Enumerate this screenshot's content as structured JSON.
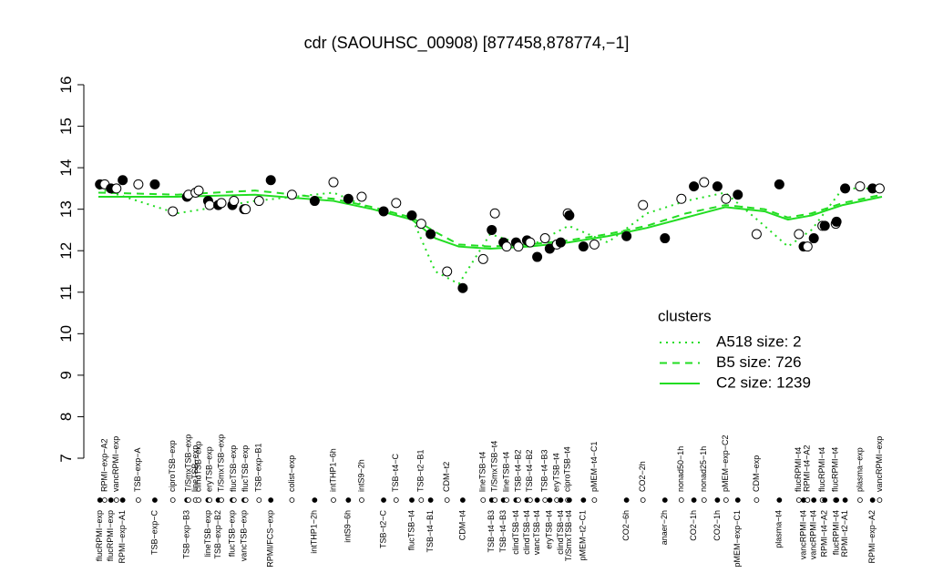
{
  "chart_data": {
    "type": "scatter",
    "title": "cdr (SAOUHSC_00908) [877458,878774,−1]",
    "ylim": [
      7,
      16
    ],
    "yticks": [
      7,
      8,
      9,
      10,
      11,
      12,
      13,
      14,
      15,
      16
    ],
    "xlim": [
      0,
      100
    ],
    "x": [
      0.2,
      0.8,
      1.6,
      2.3,
      3.1,
      5.1,
      7.2,
      9.5,
      11.3,
      11.5,
      12.4,
      12.8,
      14.0,
      14.2,
      15.3,
      15.7,
      17.1,
      17.3,
      18.6,
      18.8,
      20.5,
      22.0,
      24.7,
      27.6,
      30.0,
      31.9,
      33.6,
      36.4,
      38.0,
      40.0,
      41.2,
      42.4,
      44.5,
      46.5,
      49.1,
      50.2,
      50.6,
      51.7,
      52.1,
      53.3,
      53.6,
      54.7,
      55.1,
      56.0,
      57.0,
      57.6,
      58.5,
      59.0,
      59.9,
      60.1,
      61.9,
      63.3,
      67.4,
      69.5,
      72.3,
      74.4,
      76.0,
      77.3,
      79.0,
      80.1,
      81.6,
      84.0,
      86.9,
      89.4,
      90.0,
      90.5,
      91.3,
      92.4,
      92.7,
      94.1,
      94.2,
      95.3,
      97.2,
      98.8,
      99.7
    ],
    "values": [
      13.6,
      13.6,
      13.5,
      13.5,
      13.7,
      13.6,
      13.6,
      12.95,
      13.3,
      13.35,
      13.4,
      13.45,
      13.2,
      13.1,
      13.1,
      13.15,
      13.1,
      13.2,
      13.0,
      13.0,
      13.2,
      13.7,
      13.35,
      13.2,
      13.65,
      13.25,
      13.3,
      12.95,
      13.15,
      12.85,
      12.65,
      12.4,
      11.5,
      11.1,
      11.8,
      12.5,
      12.9,
      12.2,
      12.1,
      12.2,
      12.1,
      12.25,
      12.2,
      11.85,
      12.3,
      12.05,
      12.15,
      12.2,
      12.9,
      12.85,
      12.1,
      12.15,
      12.35,
      13.1,
      12.3,
      13.25,
      13.55,
      13.65,
      13.55,
      13.25,
      13.35,
      12.4,
      13.6,
      12.4,
      12.1,
      12.1,
      12.3,
      12.6,
      12.6,
      12.65,
      12.7,
      13.5,
      13.55,
      13.5,
      13.5
    ],
    "categories": [
      "flucRPMI−exp",
      "RPMI−exp−A2",
      "flucRPMI−exp",
      "vancRPMI−exp",
      "RPMI−exp−A1",
      "TSB−exp−A",
      "TSB−exp−C",
      "ciproTSB−exp",
      "TSB−exp−B3",
      "T/SmxTSB−exp",
      "lineTSB−exp",
      "clindTSB−exp",
      "lineTSB−exp",
      "eryTSB−exp",
      "TSB−exp−B2",
      "T/SmxTSB−exp",
      "flucTSB−exp",
      "flucTSB−exp",
      "vancTSB−exp",
      "flucTSB−exp",
      "TSB−exp−B1",
      "RPMI/FCS−exp",
      "colist−exp",
      "intTHP1−2h",
      "intTHP1−6h",
      "intS9−6h",
      "intS9−2h",
      "TSB−t2−C",
      "TSB−t4−C",
      "flucTSB−t4",
      "TSB−t2−B1",
      "TSB−t4−B1",
      "CDM−t2",
      "CDM−t4",
      "lineTSB−t4",
      "TSB−t4−B3",
      "T/SmxTSB−t4",
      "TSB−t4−B3",
      "lineTSB−t4",
      "clindTSB−t4",
      "TSB−t4−B2",
      "clindTSB−t4",
      "TSB−t4−B2",
      "vancTSB−t4",
      "TSB−t4−B3",
      "eryTSB−t4",
      "eryTSB−t4",
      "clindTSB−t4",
      "ciproTSB−t4",
      "T/SmxTSB−t4",
      "pMEM−t2−C1",
      "pMEM−t4−C1",
      "CO2−6h",
      "CO2−2h",
      "anaer−2h",
      "nonad50−1h",
      "CO2−1h",
      "nonad25−1h",
      "CO2−1h",
      "pMEM−exp−C2",
      "pMEM−exp−C1",
      "CDM−exp",
      "plasma−t4",
      "flucRPMI−t4",
      "vancRPMI−t4",
      "RPMI−t4−A2",
      "vancRPMI−t4",
      "flucRPMI−t4",
      "RPMI−t4−A2",
      "flucRPMI−t4",
      "flucRPMI−t4",
      "RPMI−t2−A1",
      "plasma−exp",
      "RPMI−exp−A2",
      "vancRPMI−exp"
    ],
    "fills": [
      "#000",
      "#fff",
      "#000",
      "#fff",
      "#000",
      "#fff",
      "#000",
      "#fff",
      "#000",
      "#fff",
      "#fff",
      "#fff",
      "#000",
      "#fff",
      "#000",
      "#fff",
      "#000",
      "#fff",
      "#000",
      "#fff",
      "#fff",
      "#000",
      "#fff",
      "#000",
      "#fff",
      "#000",
      "#fff",
      "#000",
      "#fff",
      "#000",
      "#fff",
      "#000",
      "#fff",
      "#000",
      "#fff",
      "#000",
      "#fff",
      "#000",
      "#fff",
      "#000",
      "#fff",
      "#000",
      "#fff",
      "#000",
      "#fff",
      "#000",
      "#fff",
      "#000",
      "#fff",
      "#000",
      "#000",
      "#fff",
      "#000",
      "#fff",
      "#000",
      "#fff",
      "#000",
      "#fff",
      "#000",
      "#fff",
      "#000",
      "#fff",
      "#000",
      "#fff",
      "#000",
      "#fff",
      "#000",
      "#fff",
      "#000",
      "#fff",
      "#000",
      "#000",
      "#fff",
      "#000",
      "#fff"
    ],
    "legend_title": "clusters",
    "series": [
      {
        "name": "A518 size: 2",
        "color": "#22dd22",
        "dash": "dotted",
        "x": [
          0,
          10,
          20,
          30,
          35,
          40,
          43,
          46,
          50,
          55,
          60,
          65,
          70,
          75,
          80,
          85,
          88,
          91,
          95,
          100
        ],
        "values": [
          13.5,
          12.9,
          13.2,
          13.4,
          13.0,
          12.8,
          11.5,
          11.2,
          12.4,
          12.1,
          12.6,
          12.2,
          12.9,
          13.2,
          13.4,
          12.6,
          12.1,
          12.5,
          13.5,
          13.5
        ]
      },
      {
        "name": "B5 size: 726",
        "color": "#22dd22",
        "dash": "dashed",
        "x": [
          0,
          10,
          20,
          30,
          35,
          40,
          43,
          46,
          50,
          55,
          60,
          65,
          70,
          75,
          80,
          85,
          88,
          91,
          95,
          100
        ],
        "values": [
          13.4,
          13.35,
          13.45,
          13.25,
          13.05,
          12.8,
          12.45,
          12.15,
          12.1,
          12.15,
          12.25,
          12.4,
          12.6,
          12.9,
          13.1,
          13.0,
          12.8,
          12.9,
          13.15,
          13.35
        ]
      },
      {
        "name": "C2 size: 1239",
        "color": "#22dd22",
        "dash": "solid",
        "x": [
          0,
          10,
          20,
          30,
          35,
          40,
          43,
          46,
          50,
          55,
          60,
          65,
          70,
          75,
          80,
          85,
          88,
          91,
          95,
          100
        ],
        "values": [
          13.3,
          13.3,
          13.35,
          13.2,
          13.0,
          12.75,
          12.3,
          12.1,
          12.05,
          12.1,
          12.2,
          12.35,
          12.55,
          12.8,
          13.05,
          12.95,
          12.75,
          12.85,
          13.1,
          13.3
        ]
      }
    ]
  }
}
